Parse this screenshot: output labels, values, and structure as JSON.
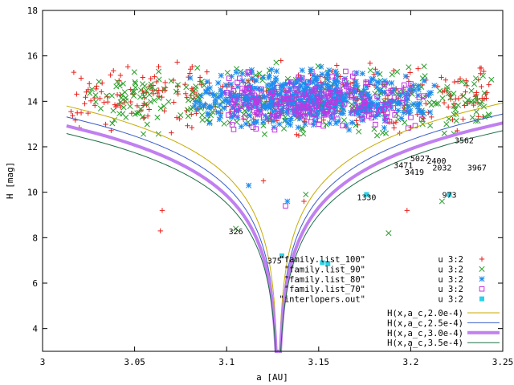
{
  "chart_data": {
    "type": "scatter",
    "xlabel": "a [AU]",
    "ylabel": "H [mag]",
    "xlim": [
      3.0,
      3.25
    ],
    "ylim": [
      3,
      18
    ],
    "xticks": [
      "3",
      "3.05",
      "3.1",
      "3.15",
      "3.2",
      "3.25"
    ],
    "yticks": [
      "4",
      "6",
      "8",
      "10",
      "12",
      "14",
      "16",
      "18"
    ],
    "grid": false,
    "legend_position": "bottom-right",
    "center_a": 3.128,
    "series": [
      {
        "name": "\"family.list_100\"",
        "legend_label": "u 3:2",
        "marker": "plus",
        "color": "#e8221e"
      },
      {
        "name": "\"family.list_90\"",
        "legend_label": "u 3:2",
        "marker": "cross",
        "color": "#2aa02a"
      },
      {
        "name": "\"family.list_80\"",
        "legend_label": "u 3:2",
        "marker": "star",
        "color": "#1e8cf0"
      },
      {
        "name": "\"family.list_70\"",
        "legend_label": "u 3:2",
        "marker": "box",
        "color": "#c235e0"
      },
      {
        "name": "\"interlopers.out\"",
        "legend_label": "u 3:2",
        "marker": "filled-box",
        "color": "#28d2e6"
      }
    ],
    "curves": [
      {
        "name": "H(x,a_c,2.0e-4)",
        "color": "#c8aa00",
        "width": 1,
        "C": 0.0002
      },
      {
        "name": "H(x,a_c,2.5e-4)",
        "color": "#3a5dc8",
        "width": 1,
        "C": 0.00025
      },
      {
        "name": "H(x,a_c,3.0e-4)",
        "color": "#c080f0",
        "width": 4,
        "C": 0.0003
      },
      {
        "name": "H(x,a_c,3.5e-4)",
        "color": "#1e6e46",
        "width": 1,
        "C": 0.00035
      }
    ],
    "labeled_points": [
      {
        "label": "375",
        "x": 3.126,
        "y": 7.0
      },
      {
        "label": "326",
        "x": 3.105,
        "y": 8.3
      },
      {
        "label": "1330",
        "x": 3.176,
        "y": 9.8
      },
      {
        "label": "973",
        "x": 3.221,
        "y": 9.9
      },
      {
        "label": "3967",
        "x": 3.236,
        "y": 11.1
      },
      {
        "label": "3471",
        "x": 3.196,
        "y": 11.2
      },
      {
        "label": "3419",
        "x": 3.202,
        "y": 10.9
      },
      {
        "label": "3562",
        "x": 3.229,
        "y": 12.3
      },
      {
        "label": "5027",
        "x": 3.205,
        "y": 11.5
      },
      {
        "label": "2400",
        "x": 3.214,
        "y": 11.4
      },
      {
        "label": "2032",
        "x": 3.217,
        "y": 11.1
      }
    ]
  }
}
